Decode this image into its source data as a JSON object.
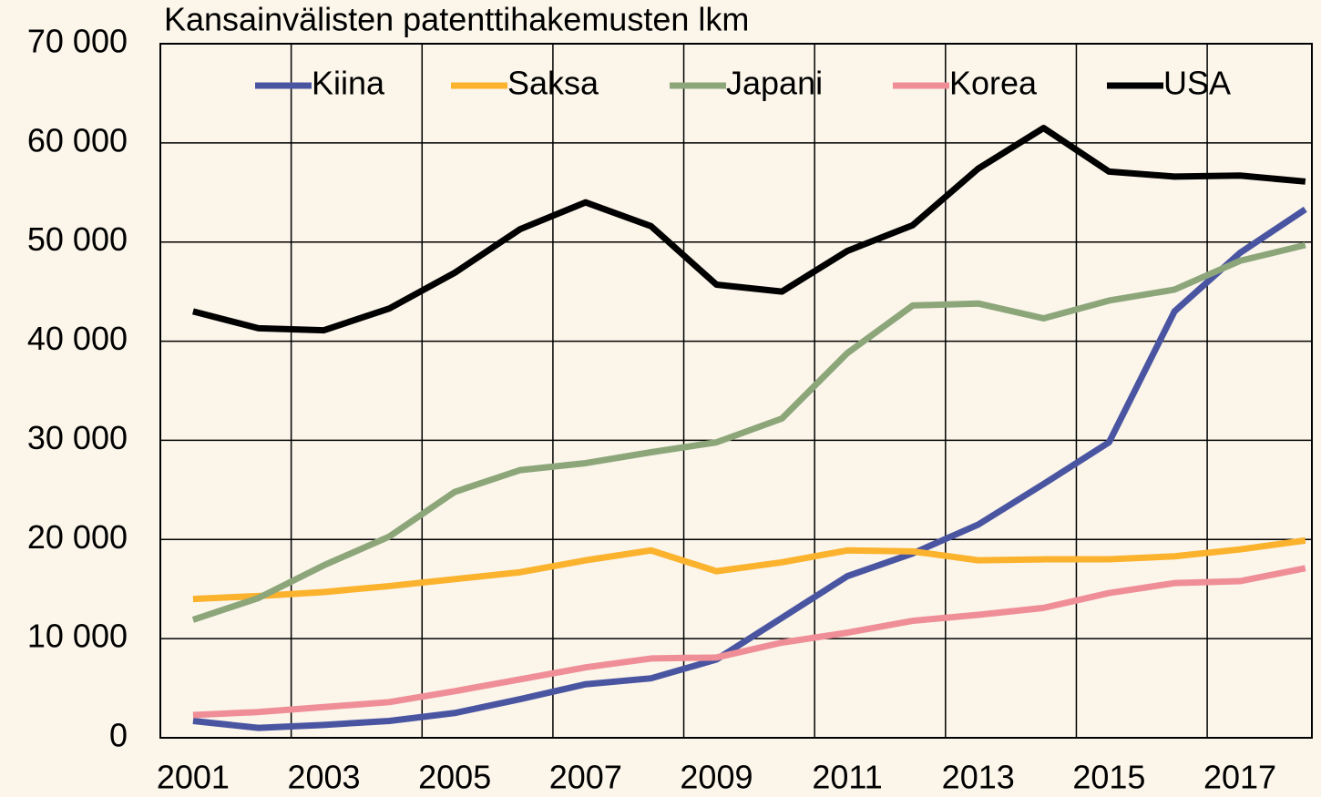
{
  "chart_data": {
    "type": "line",
    "title": "Kansainvälisten patenttihakemusten lkm",
    "x": [
      2001,
      2002,
      2003,
      2004,
      2005,
      2006,
      2007,
      2008,
      2009,
      2010,
      2011,
      2012,
      2013,
      2014,
      2015,
      2016,
      2017,
      2018
    ],
    "series": [
      {
        "name": "Kiina",
        "color": "#4a55a2",
        "values": [
          1700,
          1000,
          1300,
          1700,
          2500,
          3900,
          5400,
          6000,
          7900,
          12100,
          16300,
          18600,
          21500,
          25600,
          29800,
          43000,
          48900,
          53300
        ]
      },
      {
        "name": "Saksa",
        "color": "#fbb22d",
        "values": [
          14000,
          14300,
          14700,
          15300,
          16000,
          16700,
          17900,
          18900,
          16800,
          17700,
          18900,
          18800,
          17900,
          18000,
          18000,
          18300,
          19000,
          19900
        ]
      },
      {
        "name": "Japani",
        "color": "#8ca67a",
        "values": [
          11900,
          14100,
          17400,
          20300,
          24800,
          27000,
          27700,
          28800,
          29800,
          32200,
          38800,
          43600,
          43800,
          42300,
          44100,
          45200,
          48100,
          49700
        ]
      },
      {
        "name": "Korea",
        "color": "#ef8e97",
        "values": [
          2300,
          2600,
          3100,
          3600,
          4700,
          5900,
          7100,
          8000,
          8100,
          9600,
          10600,
          11800,
          12400,
          13100,
          14600,
          15600,
          15800,
          17100
        ]
      },
      {
        "name": "USA",
        "color": "#000000",
        "values": [
          43000,
          41300,
          41100,
          43300,
          46900,
          51300,
          54000,
          51600,
          45700,
          45000,
          49100,
          51700,
          57400,
          61500,
          57100,
          56600,
          56700,
          56100
        ]
      }
    ],
    "xlim": [
      2000.5,
      2018.1
    ],
    "xticks": [
      2001,
      2003,
      2005,
      2007,
      2009,
      2011,
      2013,
      2015,
      2017
    ],
    "ylim": [
      0,
      70000
    ],
    "yticks": [
      0,
      {
        "value": 10000,
        "label": "10 000"
      },
      {
        "value": 20000,
        "label": "20 000"
      },
      {
        "value": 30000,
        "label": "30 000"
      },
      {
        "value": 40000,
        "label": "40 000"
      },
      {
        "value": 50000,
        "label": "50 000"
      },
      {
        "value": 60000,
        "label": "60 000"
      },
      {
        "value": 70000,
        "label": "70 000"
      }
    ],
    "grid": true,
    "legend": "top"
  }
}
